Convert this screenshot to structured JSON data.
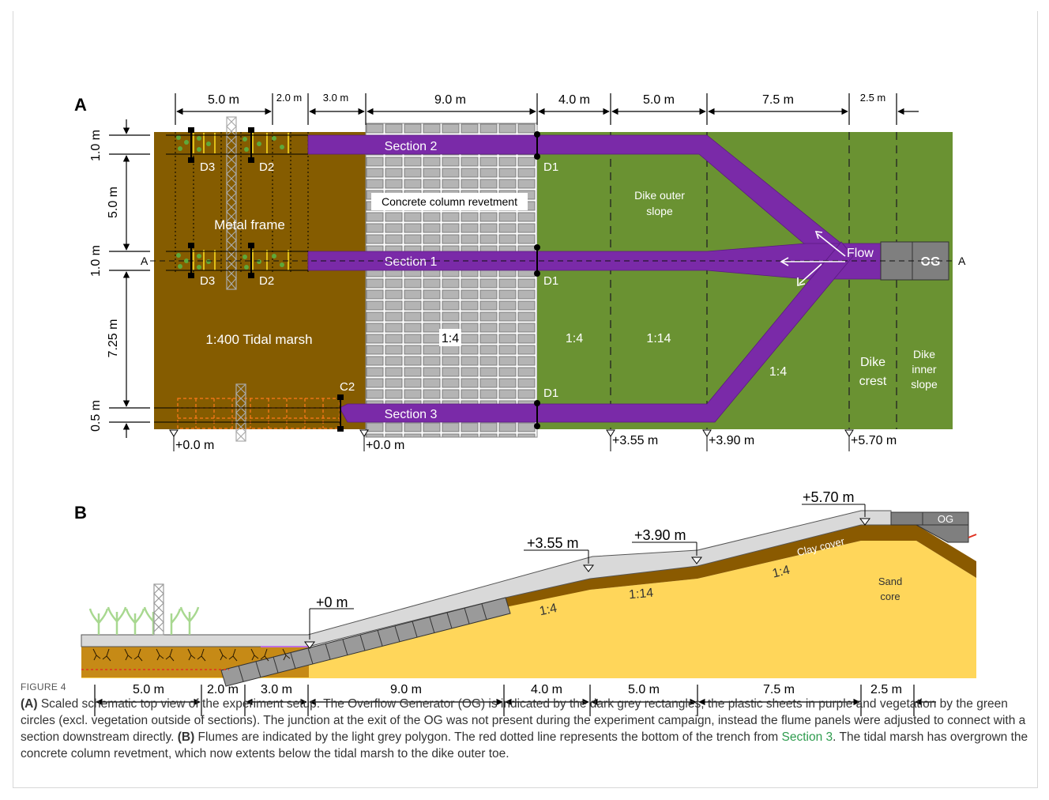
{
  "panel_a": {
    "label": "A",
    "top_dims": [
      "5.0 m",
      "2.0 m",
      "3.0 m",
      "9.0 m",
      "4.0 m",
      "5.0 m",
      "7.5 m",
      "2.5 m"
    ],
    "left_dims": [
      "1.0 m",
      "5.0 m",
      "1.0 m",
      "7.25 m",
      "0.5 m"
    ],
    "sections": [
      "Section 2",
      "Section 1",
      "Section 3"
    ],
    "labels": {
      "d1": "D1",
      "d2": "D2",
      "d3": "D3",
      "c2": "C2",
      "metal_frame": "Metal frame",
      "tidal_marsh": "1:400 Tidal marsh",
      "revetment": "Concrete column revetment",
      "revetment_slope": "1:4",
      "slope_1_4_a": "1:4",
      "slope_1_14": "1:14",
      "slope_1_4_b": "1:4",
      "outer_slope": [
        "Dike outer",
        "slope"
      ],
      "crest": [
        "Dike",
        "crest"
      ],
      "inner_slope": [
        "Dike",
        "inner",
        "slope"
      ],
      "flow": "Flow",
      "og": "OG",
      "a_left": "A",
      "a_right": "A"
    },
    "levels": [
      "+0.0 m",
      "+0.0 m",
      "+3.55 m",
      "+3.90 m",
      "+5.70 m"
    ]
  },
  "panel_b": {
    "label": "B",
    "levels": [
      "+0 m",
      "+3.55 m",
      "+3.90 m",
      "+5.70 m"
    ],
    "slopes": [
      "1:4",
      "1:14",
      "1:4"
    ],
    "clay_cover": "Clay cover",
    "sand_core": [
      "Sand",
      "core"
    ],
    "og": "OG",
    "bottom_dims": [
      "5.0 m",
      "2.0 m",
      "3.0 m",
      "9.0 m",
      "4.0 m",
      "5.0 m",
      "7.5 m",
      "2.5 m"
    ]
  },
  "caption": {
    "figure_label": "FIGURE 4",
    "a_tag": "(A)",
    "a_text": " Scaled schematic top view of the experiment setup. The Overflow Generator (OG) is indicated by the dark grey rectangles, the plastic sheets in purple and vegetation by the green circles (excl. vegetation outside of sections). The junction at the exit of the OG was not present during the experiment campaign, instead the flume panels were adjusted to connect with a section downstream directly.",
    "b_tag": "(B)",
    "b_text_1": " Flumes are indicated by the light grey polygon. The red dotted line represents the bottom of the trench from ",
    "b_link": "Section 3",
    "b_text_2": ". The tidal marsh has overgrown the concrete column revetment, which now extents below the tidal marsh to the dike outer toe."
  },
  "colors": {
    "marsh": "#855c00",
    "grass": "#6a9232",
    "purple": "#7a2aa8",
    "concrete": "#a9a9a9",
    "sand": "#ffd65a",
    "clay": "#8a5a00",
    "flume": "#d3d3d3",
    "og": "#808080"
  }
}
